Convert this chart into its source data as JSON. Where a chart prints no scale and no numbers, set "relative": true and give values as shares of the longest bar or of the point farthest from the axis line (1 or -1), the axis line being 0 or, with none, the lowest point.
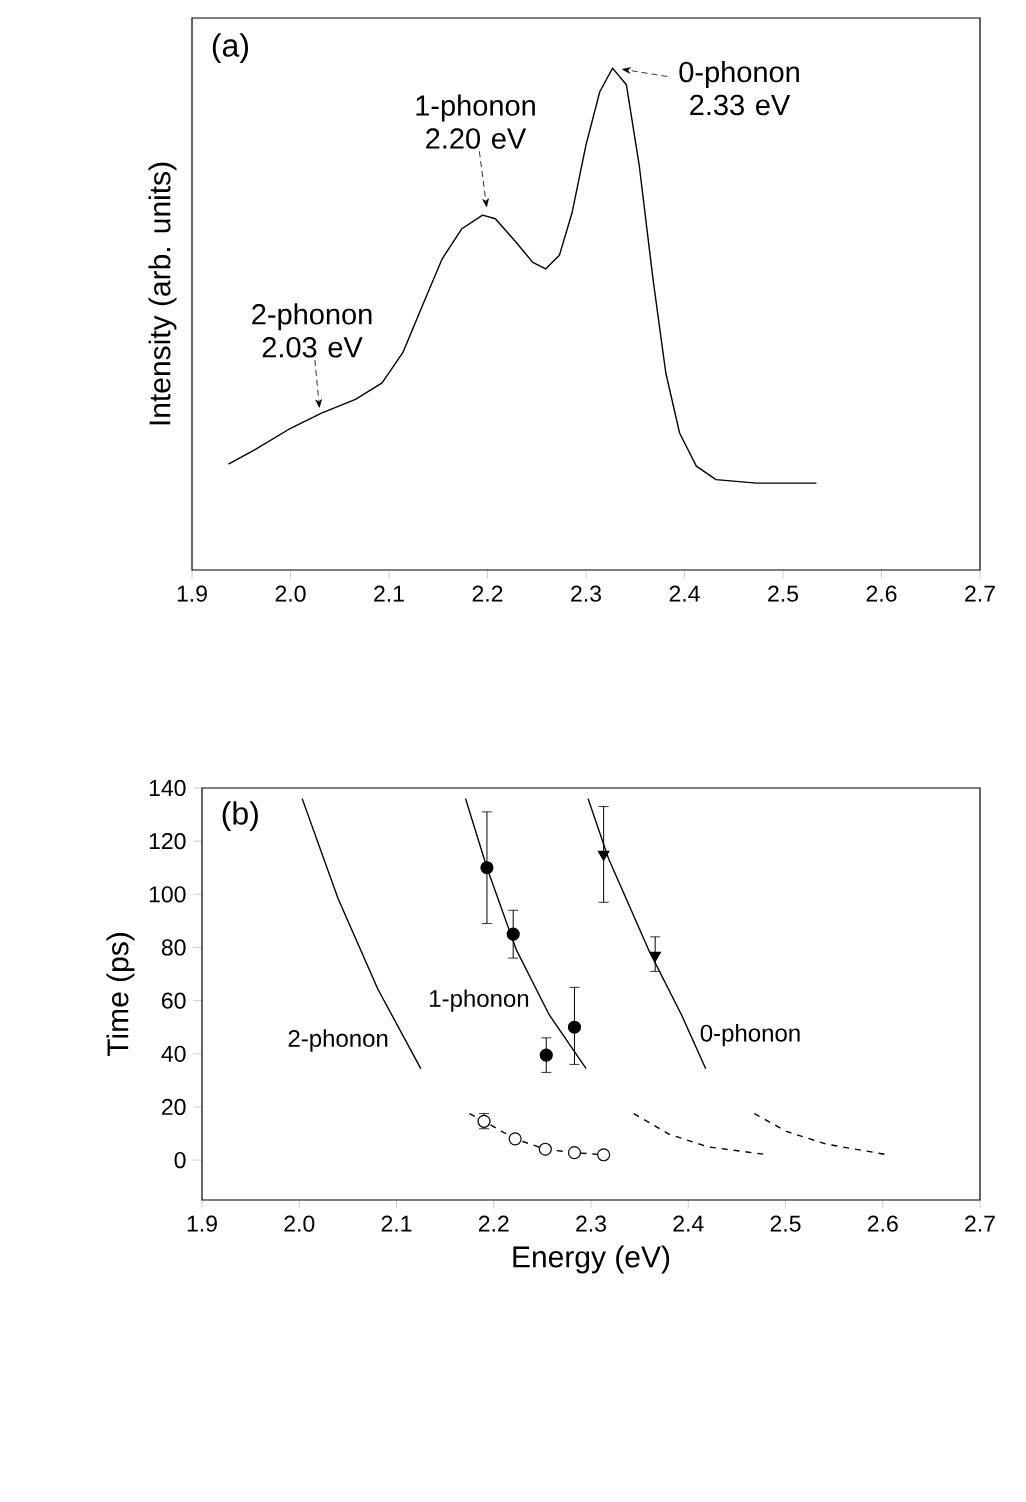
{
  "chart_data": [
    {
      "type": "line",
      "relative": true,
      "ylabel": "Intensity (arb. units)",
      "color": "#000000",
      "xlim": [
        1.9,
        2.7
      ],
      "xticks": [
        1.9,
        {
          "value": 2.0,
          "label": "2.0"
        },
        2.1,
        2.2,
        2.3,
        2.4,
        2.5,
        2.6,
        2.7
      ],
      "x": [
        1.937,
        1.964,
        1.998,
        2.032,
        2.066,
        2.093,
        2.114,
        2.134,
        2.154,
        2.174,
        2.195,
        2.208,
        2.229,
        2.246,
        2.259,
        2.273,
        2.286,
        2.3,
        2.314,
        2.327,
        2.341,
        2.354,
        2.368,
        2.381,
        2.395,
        2.412,
        2.432,
        2.473,
        2.534
      ],
      "values": [
        0.211,
        0.24,
        0.28,
        0.313,
        0.34,
        0.373,
        0.433,
        0.527,
        0.62,
        0.68,
        0.707,
        0.7,
        0.653,
        0.613,
        0.6,
        0.627,
        0.713,
        0.847,
        0.953,
        1.0,
        0.967,
        0.807,
        0.58,
        0.393,
        0.273,
        0.207,
        0.18,
        0.173,
        0.173
      ],
      "annotations": [
        "(a)",
        {
          "text": "2-phonon 2.03 eV",
          "x": 2.03,
          "y": 0.31
        },
        {
          "text": "1-phonon 2.20 eV",
          "x": 2.2,
          "y": 0.71
        },
        {
          "text": "0-phonon 2.33 eV",
          "x": 2.33,
          "y": 1.0
        }
      ]
    },
    {
      "type": "scatter",
      "xlabel": "Energy (eV)",
      "ylabel": "Time (ps)",
      "xlim": [
        1.9,
        2.7
      ],
      "ylim": [
        -15,
        140
      ],
      "xticks": [
        1.9,
        {
          "value": 2.0,
          "label": "2.0"
        },
        2.1,
        2.2,
        2.3,
        2.4,
        2.5,
        2.6,
        2.7
      ],
      "yticks": [
        0,
        20,
        40,
        60,
        80,
        100,
        120,
        140
      ],
      "annotations": [
        "(b)",
        "2-phonon",
        "1-phonon",
        "0-phonon"
      ],
      "series": [
        {
          "type": "line",
          "line_style": "solid",
          "color": "#000000",
          "x": [
            2.003,
            2.04,
            2.081,
            2.125
          ],
          "values": [
            136,
            98.3,
            64.2,
            34.4
          ]
        },
        {
          "type": "line",
          "line_style": "solid",
          "color": "#000000",
          "x": [
            2.171,
            2.193,
            2.223,
            2.257,
            2.295
          ],
          "values": [
            136,
            110,
            79.3,
            54.7,
            34.4
          ]
        },
        {
          "type": "line",
          "line_style": "solid",
          "color": "#000000",
          "x": [
            2.297,
            2.318,
            2.359,
            2.393,
            2.418
          ],
          "values": [
            136,
            113.5,
            79.3,
            54.7,
            34.4
          ]
        },
        {
          "type": "line",
          "line_style": "dashed",
          "color": "#000000",
          "x": [
            2.175,
            2.19,
            2.222,
            2.253,
            2.283,
            2.313
          ],
          "values": [
            17.5,
            14.6,
            8,
            4.1,
            2.8,
            2.0
          ]
        },
        {
          "type": "line",
          "line_style": "dashed",
          "color": "#000000",
          "x": [
            2.344,
            2.38,
            2.42,
            2.478
          ],
          "values": [
            17.5,
            9.8,
            5,
            2.2
          ]
        },
        {
          "type": "line",
          "line_style": "dashed",
          "color": "#000000",
          "x": [
            2.468,
            2.501,
            2.542,
            2.602
          ],
          "values": [
            17.5,
            10.8,
            6,
            2.2
          ]
        },
        {
          "type": "scatter",
          "marker": "circle",
          "color": "#000000",
          "x": [
            2.193,
            2.22,
            2.254,
            2.283
          ],
          "values": [
            110,
            85,
            39.5,
            50
          ],
          "errors": [
            [
              89,
              131
            ],
            [
              76,
              94
            ],
            [
              33,
              46
            ],
            [
              36,
              65
            ]
          ]
        },
        {
          "type": "scatter",
          "marker": "triangle",
          "color": "#000000",
          "x": [
            2.313,
            2.366
          ],
          "values": [
            115,
            77
          ],
          "errors": [
            [
              97,
              133
            ],
            [
              71,
              84
            ]
          ]
        },
        {
          "type": "scatter",
          "marker": "circle",
          "color": "#ffffff",
          "x": [
            2.19,
            2.222,
            2.253,
            2.283,
            2.313
          ],
          "values": [
            14.6,
            8,
            4.1,
            2.8,
            2.0
          ],
          "errors": [
            [
              11.8,
              17.5
            ],
            null,
            null,
            null,
            null
          ]
        }
      ]
    }
  ]
}
